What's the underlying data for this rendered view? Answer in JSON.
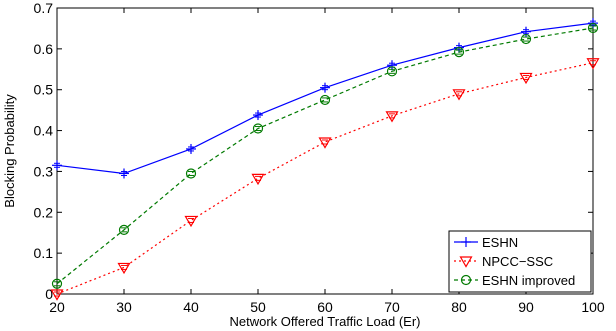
{
  "chart_data": {
    "type": "line",
    "title": "",
    "xlabel": "Network Offered Traffic Load (Er)",
    "ylabel": "Blocking Probability",
    "xlim": [
      20,
      100
    ],
    "ylim": [
      0,
      0.7
    ],
    "x": [
      20,
      30,
      40,
      50,
      60,
      70,
      80,
      90,
      100
    ],
    "x_ticks": [
      "20",
      "30",
      "40",
      "50",
      "60",
      "70",
      "80",
      "90",
      "100"
    ],
    "y_ticks": [
      "0",
      "0.1",
      "0.2",
      "0.3",
      "0.4",
      "0.5",
      "0.6",
      "0.7"
    ],
    "grid": false,
    "legend_position": "bottom-right",
    "series": [
      {
        "name": "ESHN",
        "color": "#0000ff",
        "line_style": "solid",
        "marker": "plus",
        "values": [
          0.315,
          0.295,
          0.355,
          0.438,
          0.505,
          0.56,
          0.603,
          0.642,
          0.663
        ]
      },
      {
        "name": "NPCC−SSC",
        "color": "#ff0000",
        "line_style": "dotted",
        "marker": "triangle-down",
        "values": [
          0.0,
          0.065,
          0.18,
          0.283,
          0.372,
          0.436,
          0.49,
          0.53,
          0.566
        ]
      },
      {
        "name": "ESHN improved",
        "color": "#007a00",
        "line_style": "dashed",
        "marker": "circle",
        "values": [
          0.025,
          0.157,
          0.295,
          0.405,
          0.475,
          0.545,
          0.592,
          0.624,
          0.651
        ]
      }
    ]
  }
}
